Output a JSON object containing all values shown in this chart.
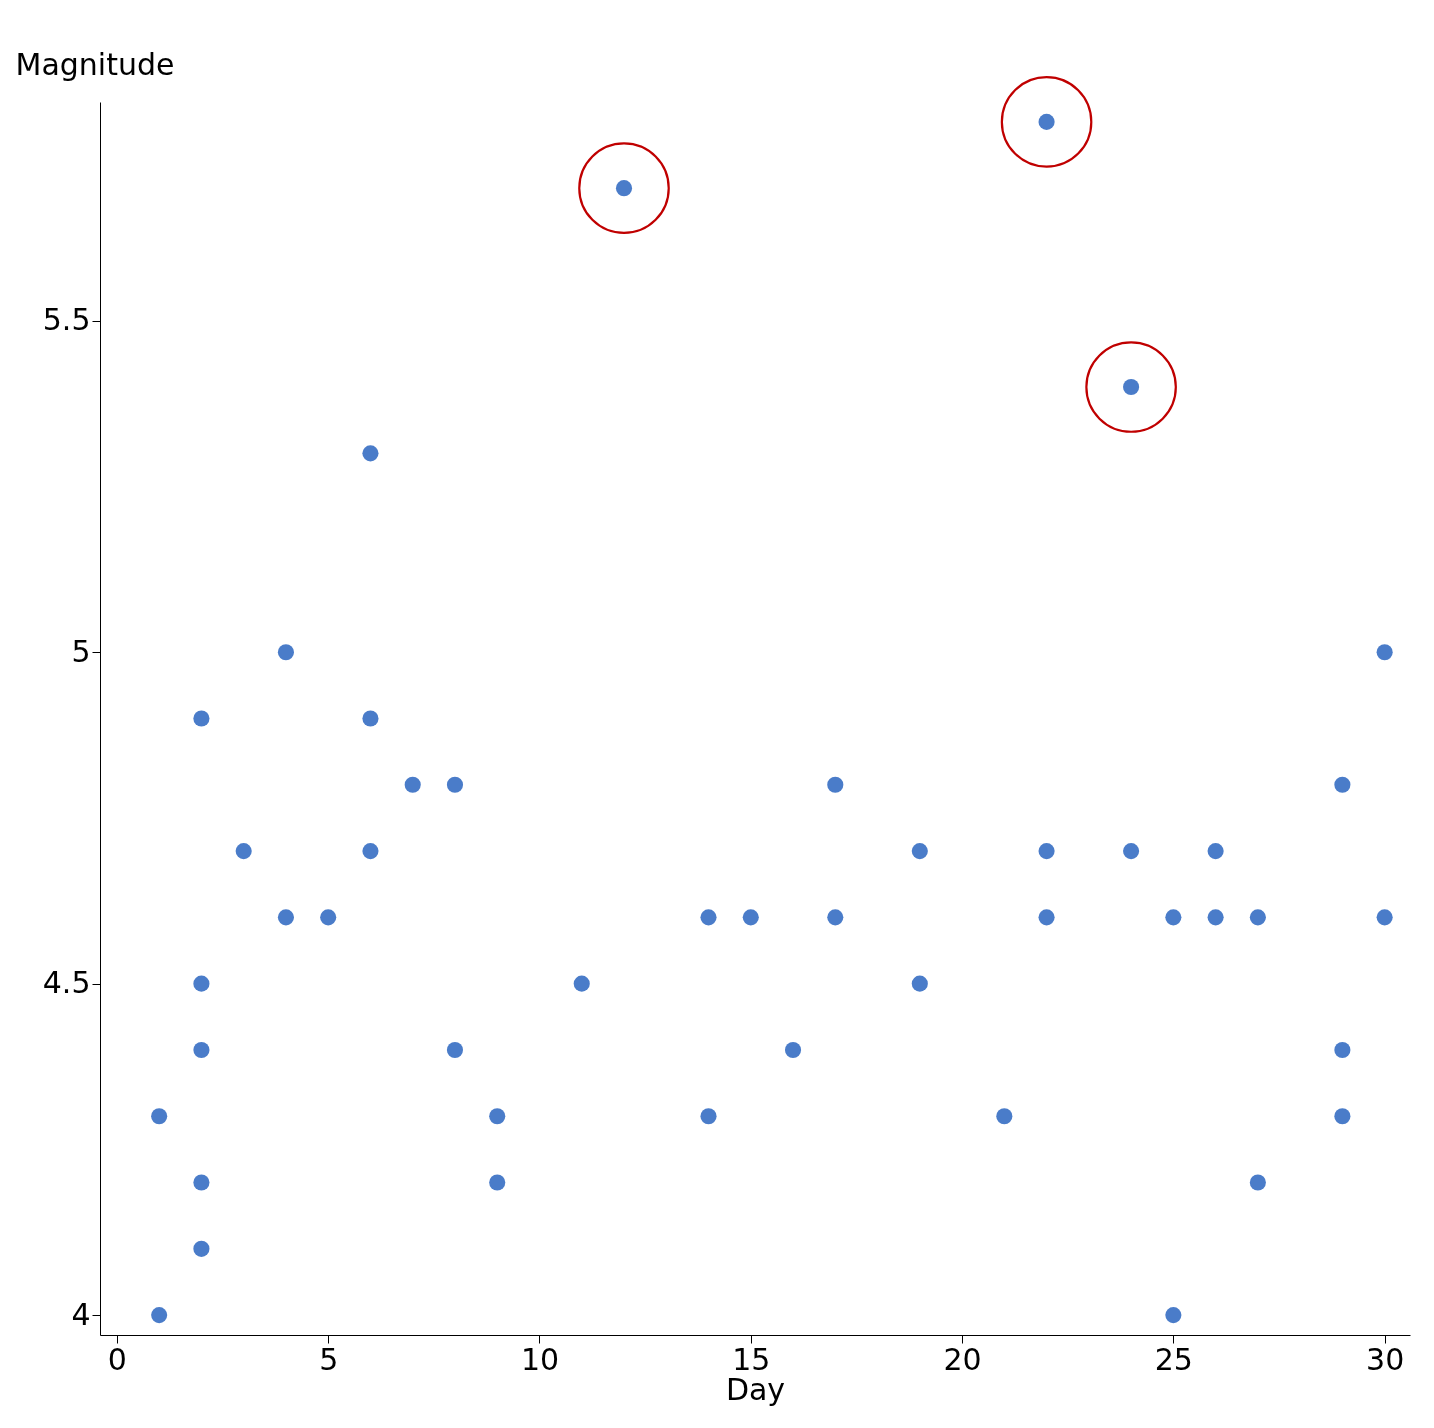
{
  "chart_data": {
    "type": "scatter",
    "xlabel": "Day",
    "ylabel": "Magnitude",
    "xlim": [
      -0.4,
      30.6
    ],
    "ylim": [
      3.97,
      5.83
    ],
    "xticks": [
      0,
      5,
      10,
      15,
      20,
      25,
      30
    ],
    "yticks": [
      4,
      4.5,
      5,
      5.5
    ],
    "grid": false,
    "legend": false,
    "marker": "circle",
    "series": [
      {
        "color": "#4a7cc9",
        "x": [
          1,
          1,
          2,
          2,
          2,
          2,
          2,
          3,
          4,
          4,
          5,
          6,
          6,
          6,
          7,
          8,
          8,
          9,
          9,
          11,
          12,
          14,
          14,
          15,
          16,
          17,
          17,
          19,
          19,
          21,
          22,
          22,
          22,
          24,
          24,
          25,
          25,
          26,
          26,
          27,
          27,
          29,
          29,
          29,
          30,
          30
        ],
        "values": [
          4.3,
          4.0,
          4.9,
          4.5,
          4.4,
          4.2,
          4.1,
          4.7,
          5.0,
          4.6,
          4.6,
          5.3,
          4.9,
          4.7,
          4.8,
          4.8,
          4.4,
          4.3,
          4.2,
          4.5,
          5.7,
          4.6,
          4.3,
          4.6,
          4.4,
          4.8,
          4.6,
          4.7,
          4.5,
          4.3,
          5.8,
          4.7,
          4.6,
          5.4,
          4.7,
          4.6,
          4.0,
          4.7,
          4.6,
          4.6,
          4.2,
          4.8,
          4.4,
          4.3,
          5.0,
          4.6
        ]
      },
      {
        "type": "bubble",
        "color": "#c00000",
        "x": [
          12,
          22,
          24
        ],
        "values": [
          5.7,
          5.8,
          5.4
        ],
        "sizes": [
          1,
          1,
          1
        ]
      }
    ]
  }
}
